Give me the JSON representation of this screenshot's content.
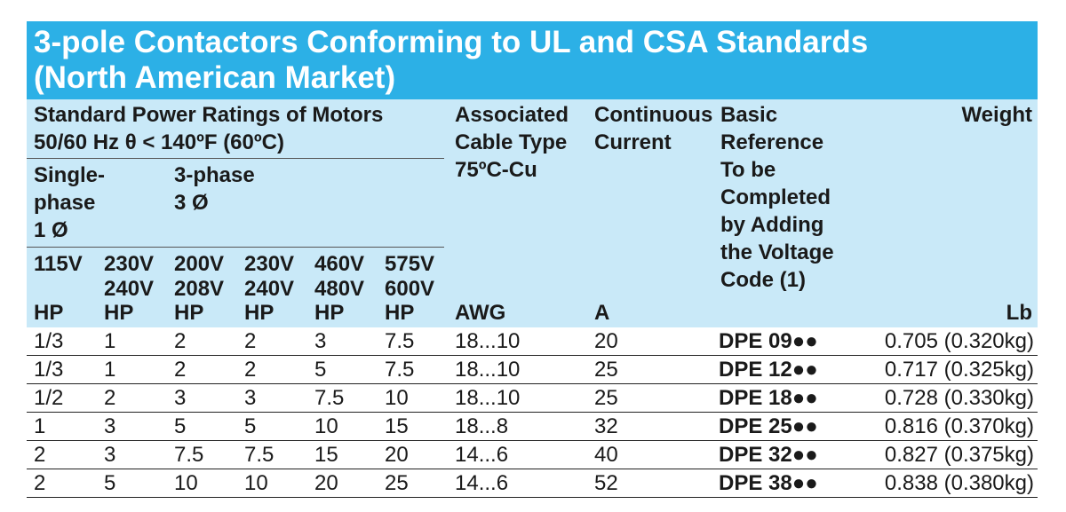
{
  "title": {
    "line1": "3-pole Contactors Conforming to UL and CSA Standards",
    "line2": "(North American Market)"
  },
  "header": {
    "ratings_line1": "Standard Power Ratings of Motors",
    "ratings_line2": "50/60 Hz θ < 140ºF (60ºC)",
    "single_phase": [
      "Single-",
      "phase",
      "1 Ø"
    ],
    "three_phase": [
      "3-phase",
      "3 Ø"
    ],
    "voltages": [
      [
        "115V",
        ""
      ],
      [
        "230V",
        "240V"
      ],
      [
        "200V",
        "208V"
      ],
      [
        "230V",
        "240V"
      ],
      [
        "460V",
        "480V"
      ],
      [
        "575V",
        "600V"
      ]
    ],
    "cable": [
      "Associated",
      "Cable Type",
      "75ºC-Cu"
    ],
    "current": [
      "Continuous",
      "Current"
    ],
    "reference": [
      "Basic",
      "Reference",
      "To be",
      "Completed",
      "by Adding",
      "the Voltage",
      "Code (1)"
    ],
    "weight": "Weight"
  },
  "units": [
    "HP",
    "HP",
    "HP",
    "HP",
    "HP",
    "HP",
    "AWG",
    "A",
    "",
    "Lb"
  ],
  "rows": [
    [
      "1/3",
      "1",
      "2",
      "2",
      "3",
      "7.5",
      "18...10",
      "20",
      "DPE 09●●",
      "0.705 (0.320kg)"
    ],
    [
      "1/3",
      "1",
      "2",
      "2",
      "5",
      "7.5",
      "18...10",
      "25",
      "DPE 12●●",
      "0.717 (0.325kg)"
    ],
    [
      "1/2",
      "2",
      "3",
      "3",
      "7.5",
      "10",
      "18...10",
      "25",
      "DPE 18●●",
      "0.728 (0.330kg)"
    ],
    [
      "1",
      "3",
      "5",
      "5",
      "10",
      "15",
      "18...8",
      "32",
      "DPE 25●●",
      "0.816 (0.370kg)"
    ],
    [
      "2",
      "3",
      "7.5",
      "7.5",
      "15",
      "20",
      "14...6",
      "40",
      "DPE 32●●",
      "0.827 (0.375kg)"
    ],
    [
      "2",
      "5",
      "10",
      "10",
      "20",
      "25",
      "14...6",
      "52",
      "DPE 38●●",
      "0.838 (0.380kg)"
    ]
  ]
}
